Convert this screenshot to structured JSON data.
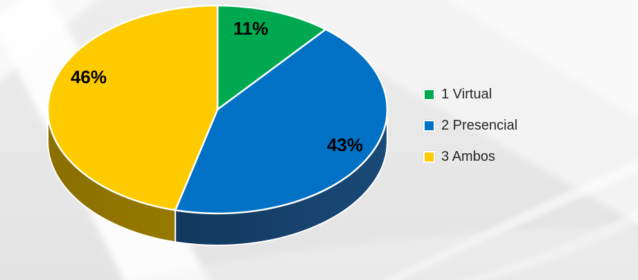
{
  "chart_data": {
    "type": "pie",
    "style": "3d",
    "title": "",
    "categories": [
      "1 Virtual",
      "2 Presencial",
      "3 Ambos"
    ],
    "values": [
      11,
      43,
      46
    ],
    "data_labels": [
      "11%",
      "43%",
      "46%"
    ],
    "colors": [
      "#00A94F",
      "#0071C5",
      "#FECB00"
    ],
    "side_gradients": [
      [
        "#006b32",
        "#008040"
      ],
      [
        "#0d2c4c",
        "#1a4a78"
      ],
      [
        "#8a6f00",
        "#ab8a00"
      ]
    ],
    "slice_border_color": "#ffffff",
    "label_color": "#000000",
    "start_angle_deg": 0,
    "direction": "clockwise",
    "legend_position": "right"
  },
  "legend": {
    "items": [
      {
        "label": "1 Virtual",
        "color": "#00A94F"
      },
      {
        "label": "2 Presencial",
        "color": "#0071C5"
      },
      {
        "label": "3 Ambos",
        "color": "#FECB00"
      }
    ]
  }
}
